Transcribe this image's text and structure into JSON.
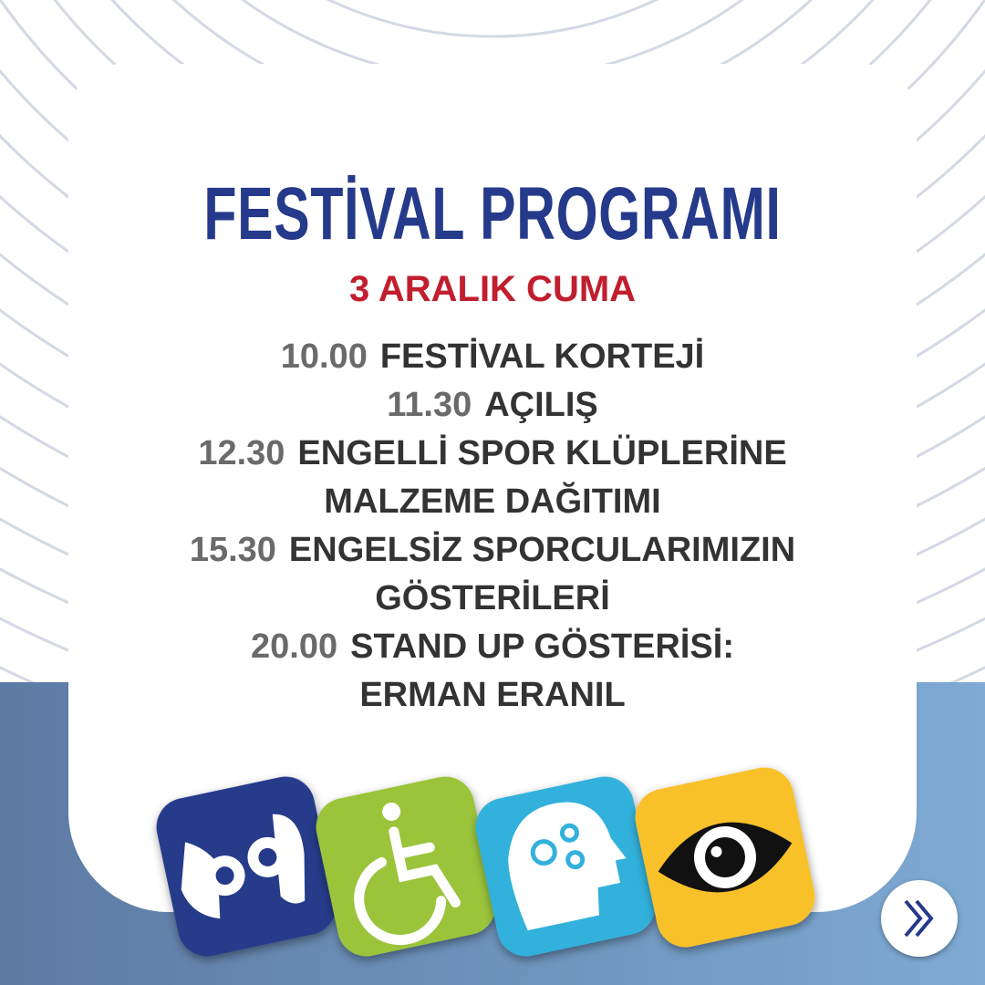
{
  "title": "FESTİVAL PROGRAMI",
  "date": "3 ARALIK CUMA",
  "schedule": [
    {
      "time": "10.00",
      "lines": [
        "FESTİVAL KORTEJİ"
      ]
    },
    {
      "time": "11.30",
      "lines": [
        "AÇILIŞ"
      ]
    },
    {
      "time": "12.30",
      "lines": [
        "ENGELLİ SPOR KLÜPLERİNE",
        "MALZEME DAĞITIMI"
      ]
    },
    {
      "time": "15.30",
      "lines": [
        "ENGELSİZ SPORCULARIMIZIN",
        "GÖSTERİLERİ"
      ]
    },
    {
      "time": "20.00",
      "lines": [
        "STAND UP GÖSTERİSİ:",
        "ERMAN ERANIL"
      ]
    }
  ],
  "icons": [
    "sign-language-icon",
    "wheelchair-icon",
    "head-gears-icon",
    "eye-icon"
  ],
  "colors": {
    "title": "#253a8a",
    "date": "#c11e2e",
    "time": "#6a6a6a",
    "text": "#333333",
    "icon_blue": "#253a8a",
    "icon_green": "#9bc43b",
    "icon_cyan": "#33b1dc",
    "icon_yellow": "#f8c12b"
  }
}
